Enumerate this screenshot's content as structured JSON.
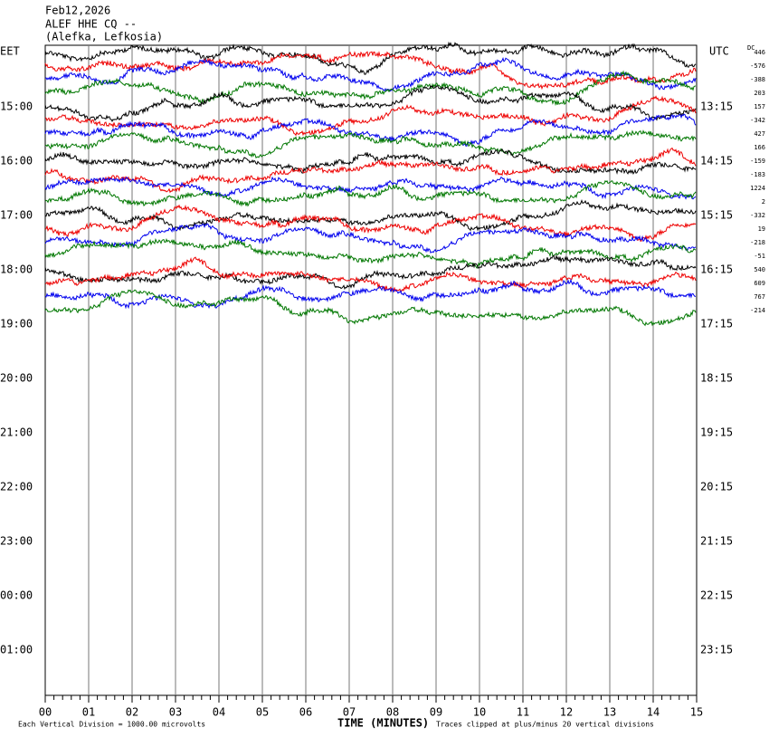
{
  "header": {
    "date": "Feb12,2026",
    "station": "ALEF HHE CQ --",
    "location": "(Alefka, Lefkosia)"
  },
  "left_axis": {
    "title": "EET",
    "labels": [
      "15:00",
      "16:00",
      "17:00",
      "18:00",
      "19:00",
      "20:00",
      "21:00",
      "22:00",
      "23:00",
      "00:00",
      "01:00"
    ]
  },
  "right_axis": {
    "title": "UTC",
    "labels": [
      "13:15",
      "14:15",
      "15:15",
      "16:15",
      "17:15",
      "18:15",
      "19:15",
      "20:15",
      "21:15",
      "22:15",
      "23:15"
    ]
  },
  "dc": {
    "title": "DC",
    "offsets": [
      446,
      -576,
      -388,
      203,
      157,
      -342,
      427,
      166,
      -159,
      -183,
      1224,
      2,
      -332,
      19,
      -218,
      -51,
      540,
      609,
      767,
      -214
    ]
  },
  "x_axis": {
    "title": "TIME (MINUTES)",
    "labels": [
      "00",
      "01",
      "02",
      "03",
      "04",
      "05",
      "06",
      "07",
      "08",
      "09",
      "10",
      "11",
      "12",
      "13",
      "14",
      "15"
    ]
  },
  "footer": {
    "scale": "Each Vertical Division = 1000.00 microvolts",
    "clip": "Traces clipped at plus/minus 20 vertical divisions"
  }
}
